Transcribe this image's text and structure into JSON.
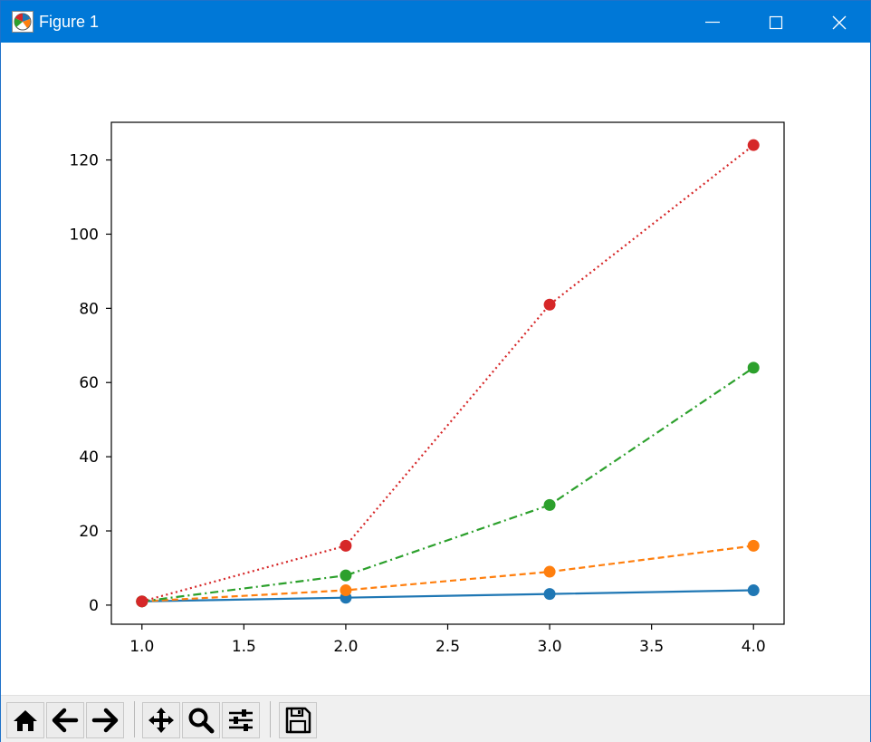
{
  "window": {
    "title": "Figure 1",
    "controls": [
      "minimize",
      "maximize",
      "close"
    ]
  },
  "toolbar": {
    "buttons": [
      {
        "name": "home",
        "icon": "home-icon"
      },
      {
        "name": "back",
        "icon": "arrow-left-icon"
      },
      {
        "name": "forward",
        "icon": "arrow-right-icon"
      },
      {
        "name": "pan",
        "icon": "move-icon"
      },
      {
        "name": "zoom",
        "icon": "magnifier-icon"
      },
      {
        "name": "configure-subplots",
        "icon": "sliders-icon"
      },
      {
        "name": "save",
        "icon": "floppy-disk-icon"
      }
    ]
  },
  "chart_data": {
    "type": "line",
    "title": "",
    "xlabel": "",
    "ylabel": "",
    "x": [
      1,
      2,
      3,
      4
    ],
    "xlim": [
      0.85,
      4.15
    ],
    "ylim": [
      -5.15,
      130.15
    ],
    "xticks": [
      1.0,
      1.5,
      2.0,
      2.5,
      3.0,
      3.5,
      4.0
    ],
    "xtick_labels": [
      "1.0",
      "1.5",
      "2.0",
      "2.5",
      "3.0",
      "3.5",
      "4.0"
    ],
    "yticks": [
      0,
      20,
      40,
      60,
      80,
      100,
      120
    ],
    "ytick_labels": [
      "0",
      "20",
      "40",
      "60",
      "80",
      "100",
      "120"
    ],
    "grid": false,
    "legend": "none",
    "series": [
      {
        "values": [
          1,
          2,
          3,
          4
        ],
        "color": "#1f77b4",
        "linestyle": "solid",
        "marker": "circle"
      },
      {
        "values": [
          1,
          4,
          9,
          16
        ],
        "color": "#ff7f0e",
        "linestyle": "dashed",
        "marker": "circle"
      },
      {
        "values": [
          1,
          8,
          27,
          64
        ],
        "color": "#2ca02c",
        "linestyle": "dashdot",
        "marker": "circle"
      },
      {
        "values": [
          1,
          16,
          81,
          124
        ],
        "color": "#d62728",
        "linestyle": "dotted",
        "marker": "circle"
      }
    ]
  }
}
